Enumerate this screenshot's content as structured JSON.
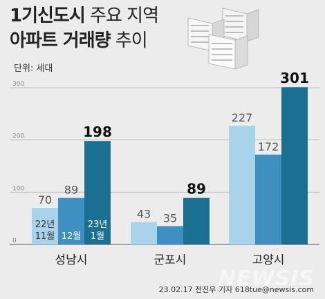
{
  "title": {
    "part1_bold": "1기신도시",
    "part1_light": " 주요 지역",
    "part2_bold": "아파트 거래량",
    "part2_light": " 추이"
  },
  "unit_label": "단위: 세대",
  "chart_data": {
    "type": "bar",
    "categories": [
      "성남시",
      "군포시",
      "고양시"
    ],
    "series": [
      {
        "name": "22년 11월",
        "values": [
          70,
          43,
          227
        ]
      },
      {
        "name": "12월",
        "values": [
          89,
          35,
          172
        ]
      },
      {
        "name": "23년 1월",
        "values": [
          198,
          89,
          301
        ]
      }
    ],
    "ylim": [
      0,
      300
    ],
    "yticks": [
      0,
      100,
      200,
      300
    ],
    "grid": true,
    "legend": "inside first group bars",
    "colors": [
      "#a9d3ea",
      "#3f8fc1",
      "#1b6f91"
    ],
    "label_colors": [
      "#555555",
      "#555555",
      "#111111"
    ]
  },
  "credit": "23.02.17 전진우 기자 618tue@newsis.com",
  "watermark": "NEWSIS"
}
